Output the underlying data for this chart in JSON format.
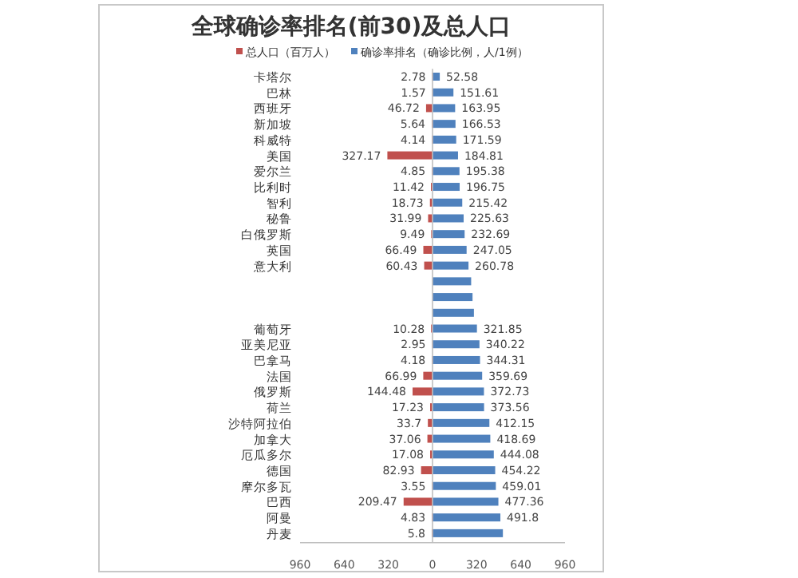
{
  "chart_data": {
    "type": "bar",
    "orientation": "horizontal",
    "title": "全球确诊率排名(前30)及总人口",
    "legend": "top",
    "categories": [
      "卡塔尔",
      "巴林",
      "西班牙",
      "新加坡",
      "科威特",
      "美国",
      "爱尔兰",
      "比利时",
      "智利",
      "秘鲁",
      "白俄罗斯",
      "英国",
      "意大利",
      null,
      null,
      null,
      "葡萄牙",
      "亚美尼亚",
      "巴拿马",
      "法国",
      "俄罗斯",
      "荷兰",
      "沙特阿拉伯",
      "加拿大",
      "厄瓜多尔",
      "德国",
      "摩尔多瓦",
      "巴西",
      "阿曼",
      "丹麦"
    ],
    "xlim": [
      -960,
      960
    ],
    "xticks": [
      {
        "value": -960,
        "label": "960"
      },
      {
        "value": -640,
        "label": "640"
      },
      {
        "value": -320,
        "label": "320"
      },
      0,
      320,
      640,
      960
    ],
    "series": [
      {
        "name": "总人口（百万人）",
        "color": "#c0504d",
        "values": [
          2.78,
          1.57,
          46.72,
          5.64,
          4.14,
          327.17,
          4.85,
          11.42,
          18.73,
          31.99,
          9.49,
          66.49,
          60.43,
          null,
          null,
          null,
          10.28,
          2.95,
          4.18,
          66.99,
          144.48,
          17.23,
          33.7,
          37.06,
          17.08,
          82.93,
          3.55,
          209.47,
          4.83,
          5.8
        ],
        "base": [
          -2.78,
          -1.57,
          -46.72,
          -5.64,
          -4.14,
          -327.17,
          -4.85,
          -11.42,
          -18.73,
          -31.99,
          -9.49,
          -66.49,
          -60.43,
          null,
          null,
          null,
          -10.28,
          -2.95,
          -4.18,
          -66.99,
          -144.48,
          -17.23,
          -33.7,
          -37.06,
          -17.08,
          -82.93,
          -3.55,
          -209.47,
          -4.83,
          -5.8
        ],
        "value_labels": [
          "2.78",
          "1.57",
          "46.72",
          "5.64",
          "4.14",
          "327.17",
          "4.85",
          "11.42",
          "18.73",
          "31.99",
          "9.49",
          "66.49",
          "60.43",
          null,
          null,
          null,
          "10.28",
          "2.95",
          "4.18",
          "66.99",
          "144.48",
          "17.23",
          "33.7",
          "37.06",
          "17.08",
          "82.93",
          "3.55",
          "209.47",
          "4.83",
          "5.8"
        ]
      },
      {
        "name": "确诊率排名（确诊比例，人/1例）",
        "color": "#4f81bd",
        "values": [
          52.58,
          151.61,
          163.95,
          166.53,
          171.59,
          184.81,
          195.38,
          196.75,
          215.42,
          225.63,
          232.69,
          247.05,
          260.78,
          280,
          290,
          300,
          321.85,
          340.22,
          344.31,
          359.69,
          372.73,
          373.56,
          412.15,
          418.69,
          444.08,
          454.22,
          459.01,
          477.36,
          491.8,
          510
        ],
        "value_labels": [
          "52.58",
          "151.61",
          "163.95",
          "166.53",
          "171.59",
          "184.81",
          "195.38",
          "196.75",
          "215.42",
          "225.63",
          "232.69",
          "247.05",
          "260.78",
          null,
          null,
          null,
          "321.85",
          "340.22",
          "344.31",
          "359.69",
          "372.73",
          "373.56",
          "412.15",
          "418.69",
          "444.08",
          "454.22",
          "459.01",
          "477.36",
          "491.8",
          null
        ]
      }
    ]
  }
}
